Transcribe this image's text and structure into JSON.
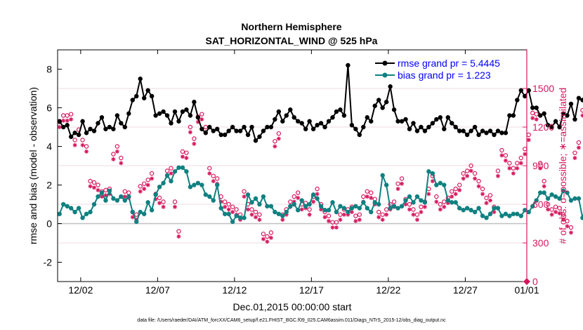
{
  "chart_data": {
    "type": "line",
    "title": "Northern Hemisphere",
    "subtitle": "SAT_HORIZONTAL_WIND @ 525 hPa",
    "xlabel": "Dec.01,2015 00:00:00 start",
    "ylabel": "rmse and bias (model - observation)",
    "ylabel_right": "# of obs: o=possible; ∗=assimilated",
    "footnote": "data file: /Users/raeder/DAI/ATM_forcXX/CAM6_setup/f.e21.FHIST_BGC.f09_025.CAM6assim.011/Diags_NTrS_2015-12/obs_diag_output.nc",
    "xlim": [
      0.5,
      31.0
    ],
    "ylim": [
      -3,
      9
    ],
    "ylim_right": [
      0,
      1800
    ],
    "x_ticks": [
      2,
      7,
      12,
      17,
      22,
      27,
      31
    ],
    "x_tick_labels": [
      "12/02",
      "12/07",
      "12/12",
      "12/17",
      "12/22",
      "12/27",
      "01/01"
    ],
    "y_ticks": [
      -2,
      0,
      2,
      4,
      6,
      8
    ],
    "y_tick_labels": [
      "-2",
      "0",
      "2",
      "4",
      "6",
      "8"
    ],
    "y_ticks_right": [
      0,
      300,
      600,
      900,
      1200,
      1500
    ],
    "y_tick_labels_right": [
      "0",
      "300",
      "600",
      "900",
      "1200",
      "1500"
    ],
    "x_start": 0.625,
    "x_step": 0.25,
    "legend_position": "top-right",
    "colors": {
      "rmse": "#000000",
      "bias": "#108080",
      "obs": "#d6185e",
      "zero_line": "#c0c0c0",
      "grid": "#e0b8c8"
    },
    "series": [
      {
        "name": "rmse grand pr = 5.4445",
        "values": [
          5.3,
          5.0,
          5.1,
          4.5,
          4.7,
          4.6,
          5.3,
          4.7,
          4.9,
          4.8,
          5.2,
          5.5,
          4.9,
          5.0,
          4.9,
          5.6,
          5.2,
          5.0,
          5.7,
          6.4,
          6.6,
          7.5,
          6.5,
          6.9,
          6.6,
          5.6,
          5.7,
          5.8,
          5.6,
          5.2,
          5.8,
          5.3,
          5.8,
          5.9,
          5.6,
          6.3,
          5.5,
          4.9,
          4.7,
          5.0,
          4.8,
          4.9,
          4.6,
          4.6,
          4.8,
          5.0,
          4.8,
          4.8,
          5.0,
          4.6,
          5.0,
          4.3,
          4.5,
          4.8,
          5.0,
          5.0,
          5.4,
          5.8,
          5.3,
          5.6,
          5.9,
          5.5,
          5.3,
          5.2,
          4.9,
          5.3,
          4.9,
          5.1,
          5.2,
          5.0,
          5.3,
          5.5,
          5.8,
          5.9,
          5.6,
          8.2,
          5.1,
          4.9,
          4.6,
          5.0,
          5.5,
          5.3,
          6.1,
          6.4,
          6.0,
          6.3,
          7.1,
          5.9,
          5.3,
          5.3,
          5.4,
          4.9,
          5.2,
          4.8,
          5.0,
          4.8,
          5.0,
          5.2,
          5.4,
          5.5,
          4.9,
          5.5,
          5.2,
          5.0,
          4.8,
          4.8,
          4.6,
          4.8,
          5.0,
          4.6,
          4.8,
          4.7,
          4.8,
          4.6,
          4.8,
          4.7,
          4.7,
          5.6,
          5.6,
          6.4,
          6.9,
          6.6,
          6.9,
          6.0,
          6.0,
          5.6,
          5.7,
          5.1,
          5.0,
          5.3,
          5.0,
          5.7,
          5.6,
          6.2,
          5.4,
          6.5,
          6.4,
          6.7,
          6.0,
          5.2,
          5.3,
          5.6,
          5.5,
          5.7,
          6.2
        ],
        "color": "#000000",
        "marker": "filled-circle"
      },
      {
        "name": "bias grand pr = 1.223",
        "values": [
          0.5,
          1.0,
          0.9,
          0.8,
          0.6,
          0.8,
          0.3,
          0.5,
          0.6,
          1.0,
          1.4,
          1.6,
          1.2,
          1.7,
          1.3,
          1.2,
          1.4,
          1.2,
          1.4,
          0.6,
          0.1,
          0.6,
          0.5,
          1.1,
          0.7,
          1.5,
          1.9,
          2.1,
          2.5,
          2.2,
          2.7,
          2.9,
          2.9,
          2.7,
          1.9,
          2.0,
          2.1,
          2.0,
          1.5,
          1.4,
          1.2,
          2.0,
          0.8,
          0.5,
          0.5,
          0.1,
          0.4,
          0.3,
          0.3,
          1.5,
          1.1,
          1.3,
          1.0,
          1.4,
          0.9,
          0.9,
          0.6,
          0.5,
          0.4,
          0.6,
          0.9,
          1.0,
          0.7,
          1.2,
          0.9,
          1.0,
          1.5,
          1.3,
          0.9,
          0.7,
          0.7,
          1.1,
          0.6,
          0.9,
          0.8,
          0.6,
          0.8,
          0.9,
          0.8,
          1.1,
          0.8,
          0.6,
          1.1,
          1.0,
          2.5,
          2.0,
          0.8,
          0.9,
          0.8,
          0.9,
          1.2,
          1.4,
          1.1,
          1.4,
          1.2,
          1.1,
          2.7,
          2.6,
          2.0,
          2.1,
          2.0,
          1.2,
          1.1,
          1.1,
          0.8,
          0.7,
          0.8,
          0.7,
          0.6,
          0.8,
          0.4,
          0.3,
          0.5,
          0.8,
          0.8,
          0.4,
          0.5,
          0.4,
          0.5,
          0.5,
          0.4,
          0.7,
          0.6,
          0.9,
          1.2,
          1.6,
          1.6,
          1.3,
          1.5,
          1.4,
          1.3,
          1.7,
          1.6,
          1.2,
          1.3,
          1.3,
          0.3,
          1.0,
          1.2,
          2.1,
          2.3,
          1.7,
          1.6
        ],
        "color": "#108080",
        "marker": "filled-circle"
      },
      {
        "name": "# obs possible",
        "axis": "right",
        "marker": "open-circle",
        "color": "#d6185e",
        "values": [
          1240,
          1290,
          1290,
          1300,
          1100,
          1180,
          1100,
          1050,
          780,
          770,
          750,
          700,
          710,
          720,
          990,
          1050,
          960,
          700,
          690,
          540,
          520,
          740,
          760,
          790,
          840,
          680,
          650,
          620,
          860,
          880,
          620,
          390,
          1010,
          1000,
          1200,
          1110,
          1280,
          1300,
          1200,
          880,
          820,
          800,
          660,
          620,
          600,
          580,
          560,
          520,
          700,
          600,
          560,
          540,
          520,
          370,
          350,
          380,
          1090,
          1150,
          520,
          560,
          620,
          660,
          690,
          600,
          610,
          560,
          660,
          720,
          600,
          540,
          510,
          460,
          460,
          520,
          560,
          560,
          580,
          510,
          520,
          660,
          700,
          690,
          640,
          540,
          520,
          560,
          600,
          620,
          760,
          800,
          640,
          600,
          560,
          520,
          580,
          620,
          720,
          820,
          660,
          600,
          620,
          650,
          700,
          720,
          750,
          840,
          860,
          900,
          840,
          780,
          720,
          650,
          670,
          580,
          860,
          1020,
          980,
          920,
          880,
          920,
          960,
          1030,
          1140,
          1310,
          1300,
          920,
          780,
          600,
          560,
          580,
          570,
          520,
          470,
          420,
          1000,
          1080,
          1330,
          1320,
          1200,
          1100,
          1040,
          960,
          980
        ]
      },
      {
        "name": "# obs assimilated",
        "axis": "right",
        "marker": "asterisk",
        "color": "#d6185e",
        "values": [
          1200,
          1250,
          1250,
          1260,
          1060,
          1140,
          1060,
          1010,
          740,
          730,
          710,
          660,
          670,
          680,
          950,
          1010,
          920,
          660,
          650,
          500,
          480,
          700,
          720,
          750,
          800,
          640,
          610,
          580,
          820,
          840,
          580,
          350,
          970,
          960,
          1160,
          1070,
          1240,
          1260,
          1160,
          840,
          780,
          760,
          620,
          580,
          560,
          540,
          520,
          480,
          660,
          560,
          520,
          500,
          480,
          330,
          310,
          340,
          1050,
          1110,
          480,
          520,
          580,
          620,
          650,
          560,
          570,
          520,
          620,
          680,
          560,
          500,
          470,
          420,
          420,
          480,
          520,
          520,
          540,
          470,
          480,
          620,
          660,
          650,
          600,
          500,
          480,
          520,
          560,
          580,
          720,
          760,
          600,
          560,
          520,
          480,
          540,
          580,
          680,
          780,
          620,
          560,
          580,
          610,
          660,
          680,
          710,
          800,
          820,
          860,
          800,
          740,
          680,
          610,
          630,
          540,
          820,
          980,
          940,
          880,
          840,
          880,
          920,
          990,
          1100,
          1270,
          1260,
          880,
          740,
          560,
          520,
          540,
          530,
          480,
          430,
          380,
          960,
          1040,
          1290,
          1280,
          1160,
          1060,
          1000,
          920,
          940
        ]
      }
    ],
    "extra_marker": {
      "x": 31.0,
      "right_value": 0,
      "marker": "filled-diamond"
    }
  }
}
